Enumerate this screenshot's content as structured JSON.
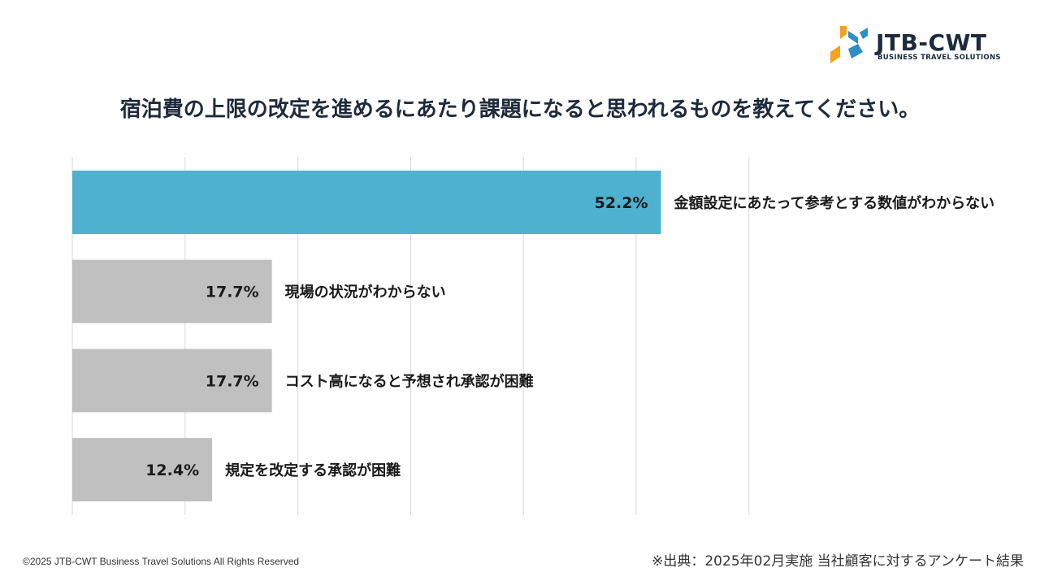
{
  "brand": {
    "name": "JTB-CWT",
    "tagline": "BUSINESS TRAVEL SOLUTIONS",
    "colors": {
      "orange": "#f5a21c",
      "blue": "#2d8fc6",
      "navy": "#1e2b3c"
    }
  },
  "chart_data": {
    "type": "bar",
    "orientation": "horizontal",
    "title": "宿泊費の上限の改定を進めるにあたり課題になると思われるものを教えてください。",
    "categories": [
      "金額設定にあたって参考とする数値がわからない",
      "現場の状況がわからない",
      "コスト高になると予想され承認が困難",
      "規定を改定する承認が困難"
    ],
    "values": [
      52.2,
      17.7,
      17.7,
      12.4
    ],
    "value_labels": [
      "52.2%",
      "17.7%",
      "17.7%",
      "12.4%"
    ],
    "unit": "%",
    "xlim": [
      0,
      60
    ],
    "grid_step": 10,
    "grid": true,
    "legend": "none",
    "highlight_index": 0,
    "colors": {
      "highlight": "#4fb1d0",
      "default": "#c0c0c0",
      "grid": "#d9d9d9"
    }
  },
  "footer": {
    "copyright": "©2025 JTB-CWT  Business Travel  Solutions All Rights Reserved",
    "source": "※出典：2025年02月実施 当社顧客に対するアンケート結果"
  }
}
